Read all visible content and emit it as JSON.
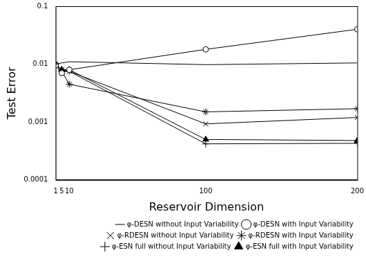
{
  "chart_data": {
    "type": "line",
    "x_label": "Reservoir Dimension",
    "y_label": "Test Error",
    "x": [
      1,
      5,
      10,
      100,
      200
    ],
    "xlim": [
      1,
      200
    ],
    "xticks": [
      1,
      5,
      10,
      100,
      200
    ],
    "ylim": [
      0.0001,
      0.1
    ],
    "yticks": [
      0.0001,
      0.001,
      0.01,
      0.1
    ],
    "log": "y",
    "grid": false,
    "legend": "bottom",
    "series": [
      {
        "name": "φ-DESN without Input Variability",
        "color": "#000000",
        "marker": "none",
        "values": [
          0.01,
          0.0105,
          0.011,
          0.0098,
          0.0105
        ]
      },
      {
        "name": "φ-DESN with Input Variability",
        "color": "#000000",
        "marker": "circle",
        "values": [
          0.0095,
          0.007,
          0.008,
          0.018,
          0.04
        ]
      },
      {
        "name": "φ-RDESN without Input Variability",
        "color": "#000000",
        "marker": "x",
        "values": [
          0.01,
          0.008,
          0.0075,
          0.00093,
          0.0012
        ]
      },
      {
        "name": "φ-RDESN with Input Variability",
        "color": "#000000",
        "marker": "star",
        "values": [
          0.01,
          0.0075,
          0.0045,
          0.0015,
          0.0017
        ]
      },
      {
        "name": "φ-ESN full without Input Variability",
        "color": "#000000",
        "marker": "plus",
        "values": [
          0.01,
          0.008,
          0.0075,
          0.00042,
          0.00043
        ]
      },
      {
        "name": "φ-ESN full with Input Variability",
        "color": "#000000",
        "marker": "triangle",
        "values": [
          0.01,
          0.008,
          0.008,
          0.0005,
          0.00048
        ]
      }
    ]
  }
}
